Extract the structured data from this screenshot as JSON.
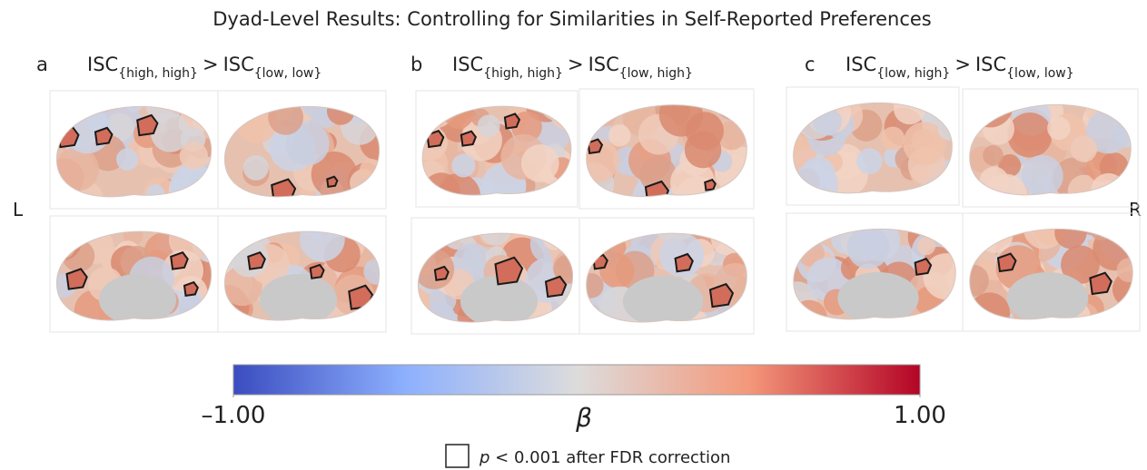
{
  "title": "Dyad-Level Results: Controlling for Similarities in Self-Reported Preferences",
  "hemisphere_labels": {
    "left": "L",
    "right": "R"
  },
  "panels": [
    {
      "letter": "a",
      "left": {
        "main": "ISC",
        "sub": "{high, high}"
      },
      "operator": ">",
      "right": {
        "main": "ISC",
        "sub": "{low, low}"
      }
    },
    {
      "letter": "b",
      "left": {
        "main": "ISC",
        "sub": "{high, high}"
      },
      "operator": ">",
      "right": {
        "main": "ISC",
        "sub": "{low, high}"
      }
    },
    {
      "letter": "c",
      "left": {
        "main": "ISC",
        "sub": "{low, high}"
      },
      "operator": ">",
      "right": {
        "main": "ISC",
        "sub": "{low, low}"
      }
    }
  ],
  "colorbar": {
    "colors": [
      "#3b4cc0",
      "#8db0fe",
      "#dddcdc",
      "#f4987a",
      "#b40426"
    ],
    "range": [
      -1,
      1
    ],
    "ticks": [
      {
        "value": -1,
        "label": "–1.00"
      },
      {
        "value": 1,
        "label": "1.00"
      }
    ],
    "label": "β"
  },
  "legend": {
    "symbol": "p",
    "text": "< 0.001 after FDR correction"
  }
}
